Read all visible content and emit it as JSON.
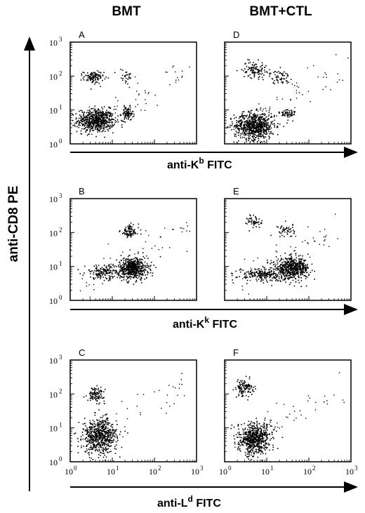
{
  "figure": {
    "column_headers": [
      "BMT",
      "BMT+CTL"
    ],
    "y_axis_title": "anti-CD8 PE",
    "row_x_titles": [
      {
        "prefix": "anti-K",
        "sup": "b",
        "suffix": " FITC"
      },
      {
        "prefix": "anti-K",
        "sup": "k",
        "suffix": " FITC"
      },
      {
        "prefix": "anti-L",
        "sup": "d",
        "suffix": " FITC"
      }
    ]
  },
  "chart_data": [
    {
      "type": "scatter",
      "panel": "A",
      "x_scale": "log",
      "y_scale": "log",
      "xlim": [
        1,
        1000
      ],
      "ylim": [
        1,
        1000
      ],
      "x_tick_labels": [],
      "y_tick_labels": [
        "10^0",
        "10^1",
        "10^2",
        "10^3"
      ],
      "clusters": [
        {
          "x": 4,
          "y": 5,
          "sx": 0.22,
          "sy": 0.17,
          "n": 620
        },
        {
          "x": 3.5,
          "y": 95,
          "sx": 0.12,
          "sy": 0.09,
          "n": 110
        },
        {
          "x": 22,
          "y": 8,
          "sx": 0.07,
          "sy": 0.1,
          "n": 90
        },
        {
          "x": 20,
          "y": 100,
          "sx": 0.1,
          "sy": 0.12,
          "n": 30
        }
      ],
      "sparse_points": 60
    },
    {
      "type": "scatter",
      "panel": "D",
      "x_scale": "log",
      "y_scale": "log",
      "xlim": [
        1,
        1000
      ],
      "ylim": [
        1,
        1000
      ],
      "x_tick_labels": [],
      "y_tick_labels": [],
      "clusters": [
        {
          "x": 5,
          "y": 3.5,
          "sx": 0.24,
          "sy": 0.2,
          "n": 720
        },
        {
          "x": 5,
          "y": 160,
          "sx": 0.14,
          "sy": 0.12,
          "n": 110
        },
        {
          "x": 20,
          "y": 95,
          "sx": 0.12,
          "sy": 0.1,
          "n": 60
        },
        {
          "x": 30,
          "y": 8,
          "sx": 0.1,
          "sy": 0.08,
          "n": 60
        }
      ],
      "sparse_points": 60
    },
    {
      "type": "scatter",
      "panel": "B",
      "x_scale": "log",
      "y_scale": "log",
      "xlim": [
        1,
        1000
      ],
      "ylim": [
        1,
        1000
      ],
      "x_tick_labels": [],
      "y_tick_labels": [
        "10^0",
        "10^1",
        "10^2",
        "10^3"
      ],
      "clusters": [
        {
          "x": 30,
          "y": 9,
          "sx": 0.18,
          "sy": 0.16,
          "n": 560
        },
        {
          "x": 6,
          "y": 7,
          "sx": 0.22,
          "sy": 0.1,
          "n": 150
        },
        {
          "x": 25,
          "y": 110,
          "sx": 0.11,
          "sy": 0.1,
          "n": 90
        }
      ],
      "sparse_points": 60
    },
    {
      "type": "scatter",
      "panel": "E",
      "x_scale": "log",
      "y_scale": "log",
      "xlim": [
        1,
        1000
      ],
      "ylim": [
        1,
        1000
      ],
      "x_tick_labels": [],
      "y_tick_labels": [],
      "clusters": [
        {
          "x": 40,
          "y": 9,
          "sx": 0.2,
          "sy": 0.15,
          "n": 540
        },
        {
          "x": 8,
          "y": 6,
          "sx": 0.3,
          "sy": 0.1,
          "n": 220
        },
        {
          "x": 5,
          "y": 220,
          "sx": 0.09,
          "sy": 0.1,
          "n": 50
        },
        {
          "x": 28,
          "y": 120,
          "sx": 0.1,
          "sy": 0.1,
          "n": 50
        }
      ],
      "sparse_points": 60
    },
    {
      "type": "scatter",
      "panel": "C",
      "x_scale": "log",
      "y_scale": "log",
      "xlim": [
        1,
        1000
      ],
      "ylim": [
        1,
        1000
      ],
      "x_tick_labels": [
        "10^0",
        "10^1",
        "10^2",
        "10^3"
      ],
      "y_tick_labels": [
        "10^0",
        "10^1",
        "10^2",
        "10^3"
      ],
      "clusters": [
        {
          "x": 5,
          "y": 6,
          "sx": 0.2,
          "sy": 0.25,
          "n": 620
        },
        {
          "x": 4,
          "y": 100,
          "sx": 0.1,
          "sy": 0.1,
          "n": 110
        }
      ],
      "sparse_points": 50
    },
    {
      "type": "scatter",
      "panel": "F",
      "x_scale": "log",
      "y_scale": "log",
      "xlim": [
        1,
        1000
      ],
      "ylim": [
        1,
        1000
      ],
      "x_tick_labels": [
        "10^0",
        "10^1",
        "10^2",
        "10^3"
      ],
      "y_tick_labels": [],
      "clusters": [
        {
          "x": 5,
          "y": 5,
          "sx": 0.2,
          "sy": 0.22,
          "n": 640
        },
        {
          "x": 3,
          "y": 150,
          "sx": 0.1,
          "sy": 0.12,
          "n": 120
        }
      ],
      "sparse_points": 50
    }
  ]
}
